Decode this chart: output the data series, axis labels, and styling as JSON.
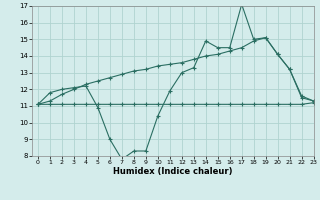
{
  "line1_x": [
    0,
    1,
    2,
    3,
    4,
    5,
    6,
    7,
    8,
    9,
    10,
    11,
    12,
    13,
    14,
    15,
    16,
    17,
    18,
    19,
    20,
    21,
    22,
    23
  ],
  "line1_y": [
    11.1,
    11.8,
    12.0,
    12.1,
    12.2,
    10.9,
    9.0,
    7.8,
    8.3,
    8.3,
    10.4,
    11.9,
    13.0,
    13.3,
    14.9,
    14.5,
    14.5,
    17.1,
    15.0,
    15.1,
    14.1,
    13.2,
    11.6,
    11.3
  ],
  "line2_x": [
    0,
    1,
    2,
    3,
    4,
    5,
    6,
    7,
    8,
    9,
    10,
    11,
    12,
    13,
    14,
    15,
    16,
    17,
    18,
    19,
    20,
    21,
    22,
    23
  ],
  "line2_y": [
    11.1,
    11.3,
    11.7,
    12.0,
    12.3,
    12.5,
    12.7,
    12.9,
    13.1,
    13.2,
    13.4,
    13.5,
    13.6,
    13.8,
    14.0,
    14.1,
    14.3,
    14.5,
    14.9,
    15.1,
    14.1,
    13.2,
    11.5,
    11.3
  ],
  "line3_x": [
    0,
    1,
    2,
    3,
    4,
    5,
    6,
    7,
    8,
    9,
    10,
    11,
    12,
    13,
    14,
    15,
    16,
    17,
    18,
    19,
    20,
    21,
    22,
    23
  ],
  "line3_y": [
    11.1,
    11.1,
    11.1,
    11.1,
    11.1,
    11.1,
    11.1,
    11.1,
    11.1,
    11.1,
    11.1,
    11.1,
    11.1,
    11.1,
    11.1,
    11.1,
    11.1,
    11.1,
    11.1,
    11.1,
    11.1,
    11.1,
    11.1,
    11.2
  ],
  "line_color": "#2a6e62",
  "bg_color": "#d4eceb",
  "grid_color": "#b0d4d0",
  "xlabel": "Humidex (Indice chaleur)",
  "ylim": [
    8,
    17
  ],
  "xlim": [
    -0.5,
    23
  ],
  "yticks": [
    8,
    9,
    10,
    11,
    12,
    13,
    14,
    15,
    16,
    17
  ],
  "xticks": [
    0,
    1,
    2,
    3,
    4,
    5,
    6,
    7,
    8,
    9,
    10,
    11,
    12,
    13,
    14,
    15,
    16,
    17,
    18,
    19,
    20,
    21,
    22,
    23
  ]
}
